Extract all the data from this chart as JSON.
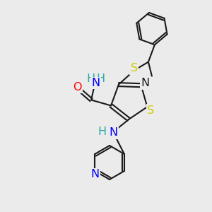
{
  "bg_color": "#ebebeb",
  "bond_color": "#1a1a1a",
  "n_color": "#0000ff",
  "o_color": "#ff0000",
  "s_color": "#cccc00",
  "hn_color": "#2aa8a8",
  "font_size": 10.5,
  "ring_s_label": "S",
  "ring_n_label": "N",
  "sub_s_label": "S",
  "o_label": "O",
  "hn_label": "H",
  "n_label": "N"
}
